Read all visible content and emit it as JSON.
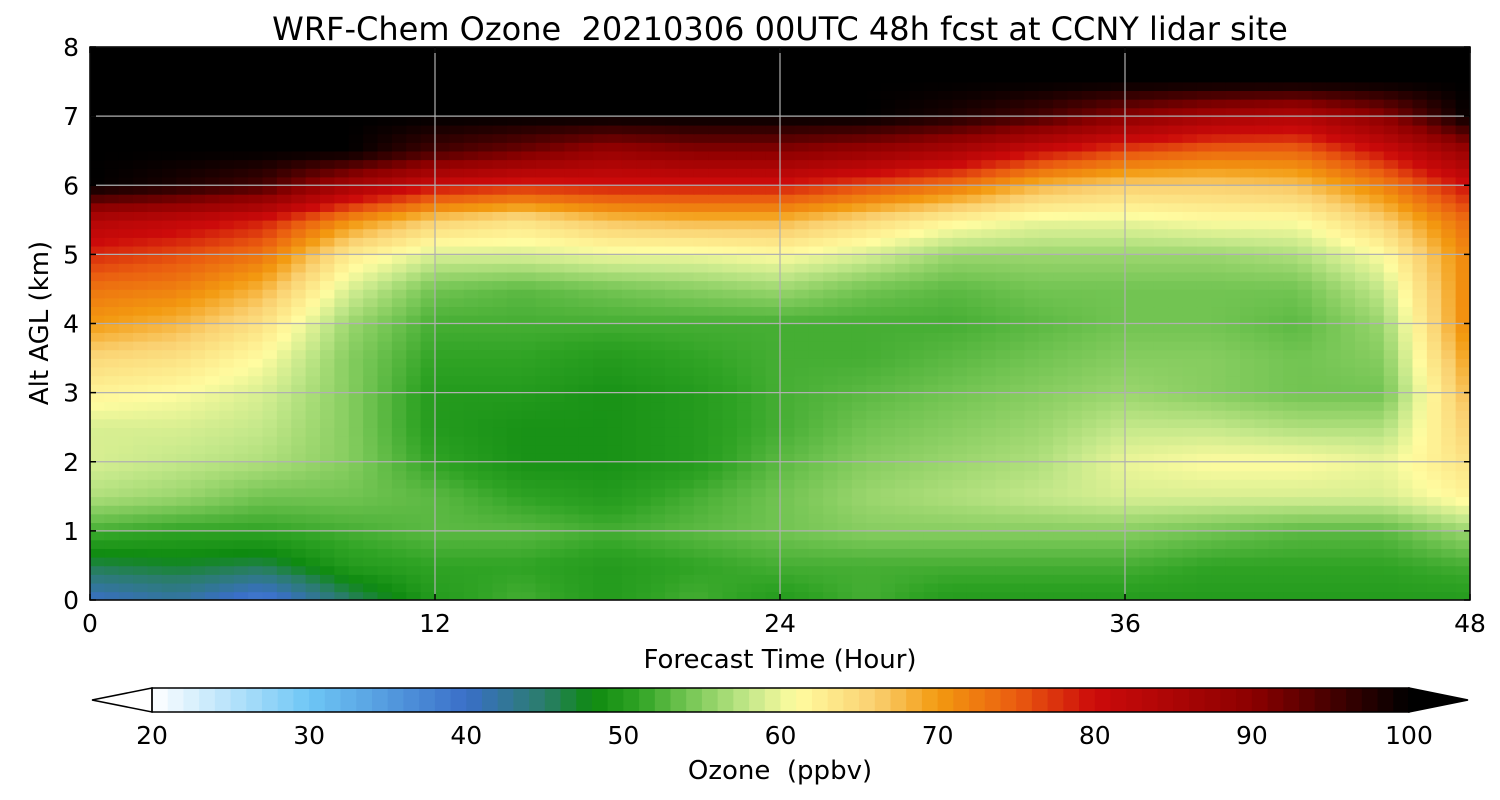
{
  "chart_data": {
    "type": "heatmap",
    "title": "WRF-Chem Ozone  20210306 00UTC 48h fcst at CCNY lidar site",
    "xlabel": "Forecast Time (Hour)",
    "ylabel": "Alt AGL (km)",
    "xlim": [
      0,
      48
    ],
    "ylim": [
      0,
      8
    ],
    "x_ticks": [
      0,
      12,
      24,
      36,
      48
    ],
    "y_ticks": [
      0,
      1,
      2,
      3,
      4,
      5,
      6,
      7,
      8
    ],
    "grid": true,
    "x": [
      0,
      3,
      6,
      9,
      12,
      15,
      18,
      21,
      24,
      27,
      30,
      33,
      36,
      39,
      42,
      45,
      48
    ],
    "y": [
      0,
      0.5,
      1,
      1.5,
      2,
      2.5,
      3,
      3.5,
      4,
      4.5,
      5,
      5.5,
      6,
      6.5,
      7,
      7.5,
      8
    ],
    "z": [
      [
        40,
        42,
        38,
        45,
        50,
        52,
        50,
        52,
        50,
        52,
        50,
        50,
        50,
        50,
        50,
        50,
        50
      ],
      [
        46,
        47,
        46,
        50,
        51,
        51,
        50,
        51,
        52,
        52,
        52,
        52,
        52,
        51,
        51,
        51,
        52
      ],
      [
        52,
        51,
        51,
        52,
        53,
        53,
        52,
        53,
        54,
        55,
        55,
        55,
        55,
        54,
        53,
        53,
        56
      ],
      [
        57,
        56,
        54,
        54,
        53,
        51,
        50,
        52,
        54,
        56,
        57,
        58,
        59,
        59,
        59,
        59,
        62
      ],
      [
        59,
        58,
        57,
        55,
        51,
        49,
        49,
        50,
        53,
        55,
        56,
        57,
        60,
        61,
        61,
        60,
        64
      ],
      [
        59,
        59,
        58,
        55,
        50,
        49,
        49,
        50,
        52,
        54,
        55,
        56,
        58,
        58,
        57,
        57,
        66
      ],
      [
        62,
        61,
        59,
        55,
        50,
        50,
        49,
        50,
        52,
        53,
        54,
        55,
        56,
        55,
        54,
        54,
        68
      ],
      [
        65,
        64,
        61,
        55,
        51,
        51,
        50,
        51,
        52,
        52,
        53,
        54,
        55,
        55,
        54,
        55,
        70
      ],
      [
        70,
        68,
        64,
        56,
        52,
        52,
        52,
        52,
        52,
        52,
        52,
        53,
        54,
        54,
        53,
        56,
        72
      ],
      [
        73,
        72,
        68,
        59,
        54,
        53,
        54,
        55,
        56,
        54,
        53,
        54,
        54,
        54,
        54,
        58,
        72
      ],
      [
        78,
        76,
        73,
        63,
        59,
        59,
        60,
        60,
        61,
        59,
        56,
        56,
        56,
        56,
        57,
        61,
        72
      ],
      [
        84,
        82,
        79,
        71,
        66,
        64,
        67,
        68,
        68,
        65,
        62,
        60,
        60,
        61,
        61,
        66,
        74
      ],
      [
        100,
        98,
        95,
        86,
        80,
        78,
        79,
        79,
        79,
        76,
        73,
        68,
        66,
        66,
        67,
        72,
        80
      ],
      [
        100,
        100,
        100,
        100,
        95,
        92,
        88,
        90,
        90,
        88,
        85,
        80,
        76,
        74,
        74,
        80,
        88
      ],
      [
        100,
        100,
        100,
        100,
        100,
        100,
        100,
        100,
        100,
        100,
        98,
        95,
        90,
        86,
        84,
        90,
        100
      ],
      [
        100,
        100,
        100,
        100,
        100,
        100,
        100,
        100,
        100,
        100,
        100,
        100,
        100,
        100,
        100,
        100,
        100
      ],
      [
        100,
        100,
        100,
        100,
        100,
        100,
        100,
        100,
        100,
        100,
        100,
        100,
        100,
        100,
        100,
        100,
        100
      ]
    ],
    "colorbar": {
      "label": "Ozone  (ppbv)",
      "min": 20,
      "max": 100,
      "ticks": [
        20,
        30,
        40,
        50,
        60,
        70,
        80,
        90,
        100
      ],
      "extend": "both",
      "stops": [
        {
          "value": 20,
          "color": "#ffffff"
        },
        {
          "value": 30,
          "color": "#6ec6f5"
        },
        {
          "value": 40,
          "color": "#3a6fc8"
        },
        {
          "value": 45,
          "color": "#2a7d6a"
        },
        {
          "value": 48,
          "color": "#0e8a10"
        },
        {
          "value": 51,
          "color": "#2fa324"
        },
        {
          "value": 54,
          "color": "#72c452"
        },
        {
          "value": 58,
          "color": "#c4e88a"
        },
        {
          "value": 61,
          "color": "#fffca0"
        },
        {
          "value": 66,
          "color": "#fad070"
        },
        {
          "value": 70,
          "color": "#f39a10"
        },
        {
          "value": 75,
          "color": "#ea5c10"
        },
        {
          "value": 80,
          "color": "#cc0a0a"
        },
        {
          "value": 90,
          "color": "#8c0000"
        },
        {
          "value": 100,
          "color": "#000000"
        }
      ]
    }
  }
}
